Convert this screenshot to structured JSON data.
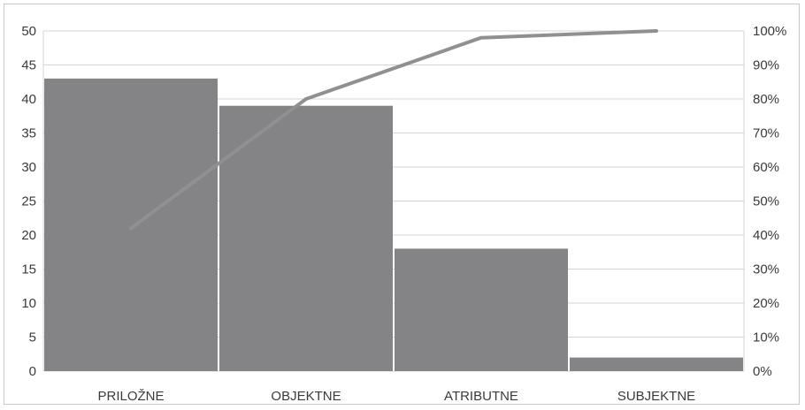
{
  "chart_data": {
    "type": "bar",
    "title": "",
    "xlabel": "",
    "ylabel": "",
    "categories": [
      "PRILOŽNE",
      "OBJEKTNE",
      "ATRIBUTNE",
      "SUBJEKTNE"
    ],
    "series": [
      {
        "type": "bar",
        "values": [
          43,
          39,
          18,
          2
        ]
      },
      {
        "type": "line",
        "axis": "secondary",
        "values": [
          42,
          80,
          98,
          100
        ]
      }
    ],
    "ylim": [
      0,
      50
    ],
    "y2lim": [
      0,
      100
    ],
    "yticks": [
      "0",
      "5",
      "10",
      "15",
      "20",
      "25",
      "30",
      "35",
      "40",
      "45",
      "50"
    ],
    "y2ticks": [
      "0%",
      "10%",
      "20%",
      "30%",
      "40%",
      "50%",
      "60%",
      "70%",
      "80%",
      "90%",
      "100%"
    ],
    "grid": true,
    "legend": "none",
    "colors": {
      "bar": "#848487",
      "line": "#909090",
      "grid": "#d4d4d4",
      "text": "#3a3a3a"
    }
  }
}
